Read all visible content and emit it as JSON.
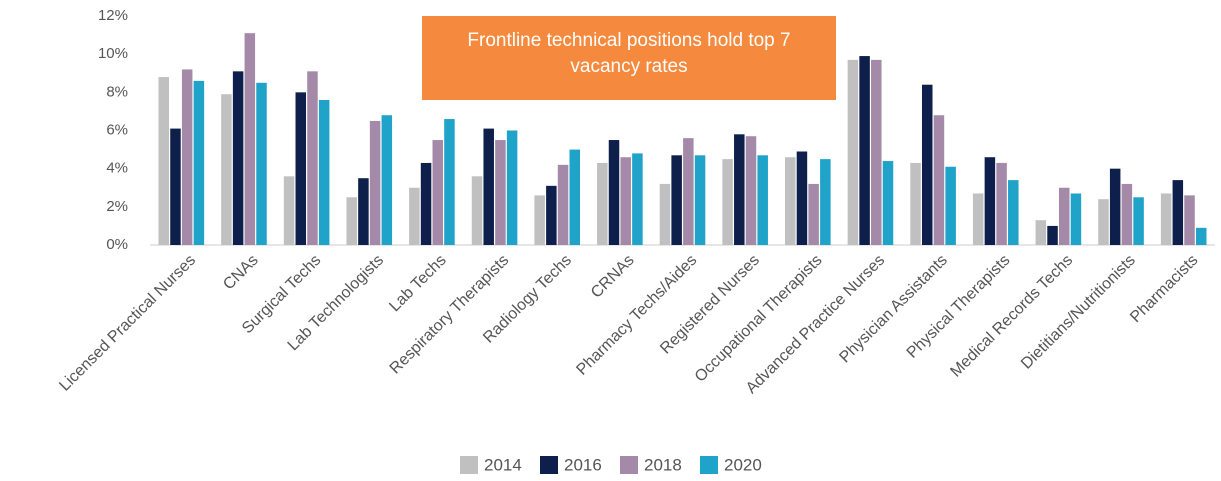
{
  "chart_data": {
    "type": "bar",
    "annotation": "Frontline technical positions hold top 7 vacancy rates",
    "categories": [
      "Licensed Practical Nurses",
      "CNAs",
      "Surgical Techs",
      "Lab Technologists",
      "Lab Techs",
      "Respiratory Therapists",
      "Radiology Techs",
      "CRNAs",
      "Pharmacy Techs/Aides",
      "Registered Nurses",
      "Occupational Therapists",
      "Advanced Practice Nurses",
      "Physician Assistants",
      "Physical Therapists",
      "Medical Records Techs",
      "Dietitians/Nutritionists",
      "Pharmacists"
    ],
    "series": [
      {
        "name": "2014",
        "color": "#c0c0c0",
        "values": [
          8.8,
          7.9,
          3.6,
          2.5,
          3.0,
          3.6,
          2.6,
          4.3,
          3.2,
          4.5,
          4.6,
          9.7,
          4.3,
          2.7,
          1.3,
          2.4,
          2.7
        ]
      },
      {
        "name": "2016",
        "color": "#0d1f4a",
        "values": [
          6.1,
          9.1,
          8.0,
          3.5,
          4.3,
          6.1,
          3.1,
          5.5,
          4.7,
          5.8,
          4.9,
          9.9,
          8.4,
          4.6,
          1.0,
          4.0,
          3.4
        ]
      },
      {
        "name": "2018",
        "color": "#a48aa8",
        "values": [
          9.2,
          11.1,
          9.1,
          6.5,
          5.5,
          5.5,
          4.2,
          4.6,
          5.6,
          5.7,
          3.2,
          9.7,
          6.8,
          4.3,
          3.0,
          3.2,
          2.6
        ]
      },
      {
        "name": "2020",
        "color": "#1fa3c8",
        "values": [
          8.6,
          8.5,
          7.6,
          6.8,
          6.6,
          6.0,
          5.0,
          4.8,
          4.7,
          4.7,
          4.5,
          4.4,
          4.1,
          3.4,
          2.7,
          2.5,
          0.9
        ]
      }
    ],
    "ylim": [
      0,
      12
    ],
    "yticks": [
      {
        "value": 0,
        "label": "0%"
      },
      {
        "value": 2,
        "label": "2%"
      },
      {
        "value": 4,
        "label": "4%"
      },
      {
        "value": 6,
        "label": "6%"
      },
      {
        "value": 8,
        "label": "8%"
      },
      {
        "value": 10,
        "label": "10%"
      },
      {
        "value": 12,
        "label": "12%"
      }
    ],
    "grid": false,
    "legend": "bottom"
  }
}
